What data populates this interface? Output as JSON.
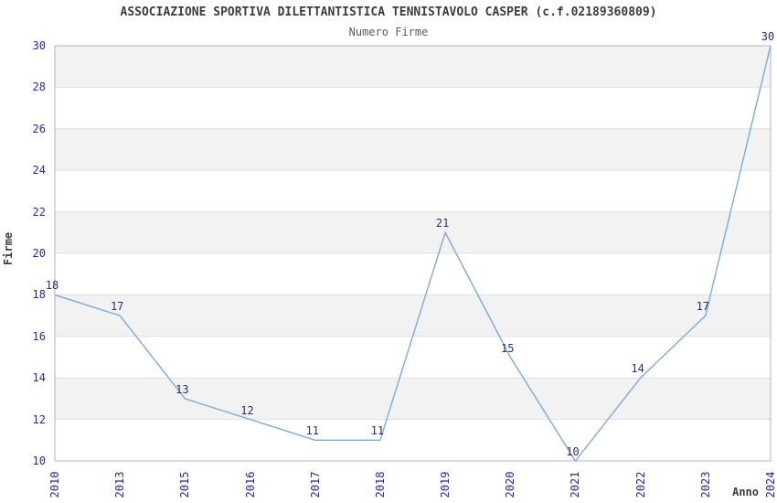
{
  "header": {
    "title": "ASSOCIAZIONE SPORTIVA DILETTANTISTICA TENNISTAVOLO CASPER (c.f.02189360809)",
    "subtitle": "Numero Firme"
  },
  "chart_data": {
    "type": "line",
    "title": "ASSOCIAZIONE SPORTIVA DILETTANTISTICA TENNISTAVOLO CASPER (c.f.02189360809)",
    "subtitle": "Numero Firme",
    "xlabel": "Anno",
    "ylabel": "Firme",
    "categories": [
      "2010",
      "2013",
      "2015",
      "2016",
      "2017",
      "2018",
      "2019",
      "2020",
      "2021",
      "2022",
      "2023",
      "2024"
    ],
    "series": [
      {
        "name": "Numero Firme",
        "values": [
          18,
          17,
          13,
          12,
          11,
          11,
          21,
          15,
          10,
          14,
          17,
          30
        ]
      }
    ],
    "data_labels": [
      18,
      17,
      13,
      12,
      11,
      11,
      21,
      15,
      10,
      14,
      17,
      30
    ],
    "ylim": [
      10,
      30
    ],
    "ytick_step": 2,
    "grid": "horizontal",
    "alternating_bands": true,
    "legend": "none",
    "colors": {
      "line": "#7aaae0",
      "tick_label": "#2323cc",
      "data_label": "#2b2b80",
      "title_text": "#3c3c3c",
      "band_gray": "#f2f2f2",
      "gridline": "#e0e0e0",
      "plot_border": "#b5b5b5",
      "background": "#ffffff"
    }
  }
}
